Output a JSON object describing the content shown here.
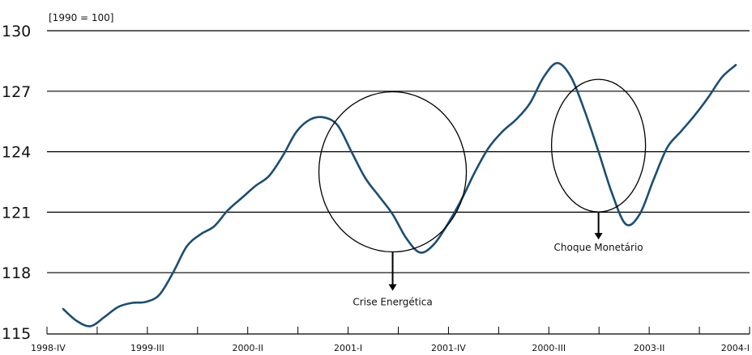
{
  "chart_data": {
    "type": "line",
    "title": "",
    "unit_label": "[1990 = 100]",
    "xlabel": "",
    "ylabel": "",
    "ylim": [
      115,
      130
    ],
    "y_ticks": [
      "130",
      "127",
      "124",
      "121",
      "118",
      "115"
    ],
    "y_tick_values": [
      130,
      127,
      124,
      121,
      118,
      115
    ],
    "x_tick_labels": [
      "1998-IV",
      "1999-III",
      "2000-II",
      "2001-I",
      "2001-IV",
      "2000-III",
      "2003-II",
      "2004-I"
    ],
    "grid": true,
    "line_color": "#1b4e73",
    "series": [
      {
        "values": [
          116.2,
          115.6,
          115.35,
          115.8,
          116.3,
          116.5,
          116.55,
          116.9,
          118.0,
          119.3,
          119.9,
          120.3,
          121.1,
          121.7,
          122.3,
          122.8,
          123.8,
          125.0,
          125.6,
          125.7,
          125.3,
          124.0,
          122.7,
          121.8,
          120.9,
          119.7,
          119.0,
          119.4,
          120.4,
          121.6,
          123.0,
          124.2,
          125.0,
          125.6,
          126.4,
          127.7,
          128.4,
          127.7,
          126.0,
          124.0,
          121.9,
          120.4,
          120.9,
          122.6,
          124.2,
          125.0,
          125.8,
          126.7,
          127.7,
          128.3
        ]
      }
    ],
    "annotations": [
      {
        "label": "Crise Energética",
        "center_value": 123.0,
        "center_index": 24
      },
      {
        "label": "Choque Monetário",
        "center_value": 124.3,
        "center_index": 39
      }
    ]
  }
}
